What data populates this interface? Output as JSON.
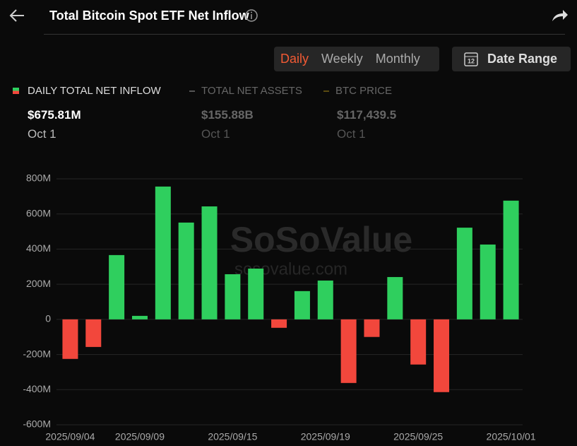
{
  "header": {
    "title": "Total Bitcoin Spot ETF Net Inflow"
  },
  "tabs": {
    "options": [
      "Daily",
      "Weekly",
      "Monthly"
    ],
    "active": 0,
    "date_range": "Date Range"
  },
  "legend": [
    {
      "name": "DAILY TOTAL NET INFLOW",
      "value": "$675.81M",
      "date": "Oct 1"
    },
    {
      "name": "TOTAL NET ASSETS",
      "value": "$155.88B",
      "date": "Oct 1"
    },
    {
      "name": "BTC PRICE",
      "value": "$117,439.5",
      "date": "Oct 1"
    }
  ],
  "watermark": {
    "brand": "SoSoValue",
    "site": "sosovalue.com"
  },
  "chart_data": {
    "type": "bar",
    "categories": [
      "2025/09/04",
      null,
      null,
      "2025/09/09",
      null,
      null,
      null,
      "2025/09/15",
      null,
      null,
      null,
      "2025/09/19",
      null,
      null,
      null,
      "2025/09/25",
      null,
      null,
      null,
      "2025/10/01"
    ],
    "values": [
      -225,
      -157,
      366,
      20,
      756,
      551,
      643,
      257,
      289,
      -48,
      161,
      221,
      -362,
      -100,
      241,
      -257,
      -414,
      522,
      426,
      675.81
    ],
    "positive_color": "#2fcf5e",
    "negative_color": "#f2473c",
    "ylim": [
      -600,
      800
    ],
    "yticks": [
      {
        "value": -600,
        "label": "-600M"
      },
      {
        "value": -400,
        "label": "-400M"
      },
      {
        "value": -200,
        "label": "-200M"
      },
      0,
      {
        "value": 200,
        "label": "200M"
      },
      {
        "value": 400,
        "label": "400M"
      },
      {
        "value": 600,
        "label": "600M"
      },
      {
        "value": 800,
        "label": "800M"
      }
    ],
    "grid": true
  }
}
